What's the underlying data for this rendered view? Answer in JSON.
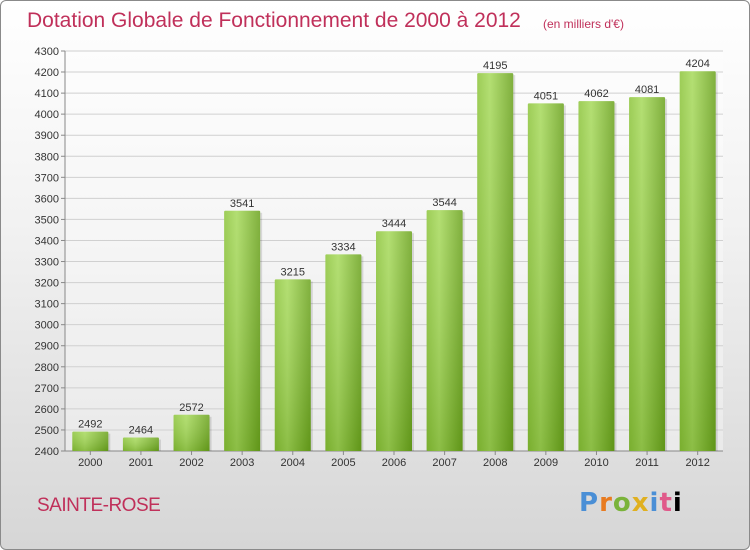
{
  "title": "Dotation Globale de Fonctionnement de 2000 à 2012",
  "subtitle": "(en milliers d'€)",
  "commune": "SAINTE-ROSE",
  "logo": "Proxiti",
  "colors": {
    "title": "#c0305a",
    "bar_light": "#a6d95a",
    "bar_dark": "#6aa21c",
    "grid": "#cfcfcf"
  },
  "chart_data": {
    "type": "bar",
    "categories": [
      "2000",
      "2001",
      "2002",
      "2003",
      "2004",
      "2005",
      "2006",
      "2007",
      "2008",
      "2009",
      "2010",
      "2011",
      "2012"
    ],
    "values": [
      2492,
      2464,
      2572,
      3541,
      3215,
      3334,
      3444,
      3544,
      4195,
      4051,
      4062,
      4081,
      4204
    ],
    "ylim": [
      2400,
      4300
    ],
    "yticks": [
      2400,
      2500,
      2600,
      2700,
      2800,
      2900,
      3000,
      3100,
      3200,
      3300,
      3400,
      3500,
      3600,
      3700,
      3800,
      3900,
      4000,
      4100,
      4200,
      4300
    ],
    "xlabel": "",
    "ylabel": "",
    "grid": true,
    "legend": "none"
  }
}
